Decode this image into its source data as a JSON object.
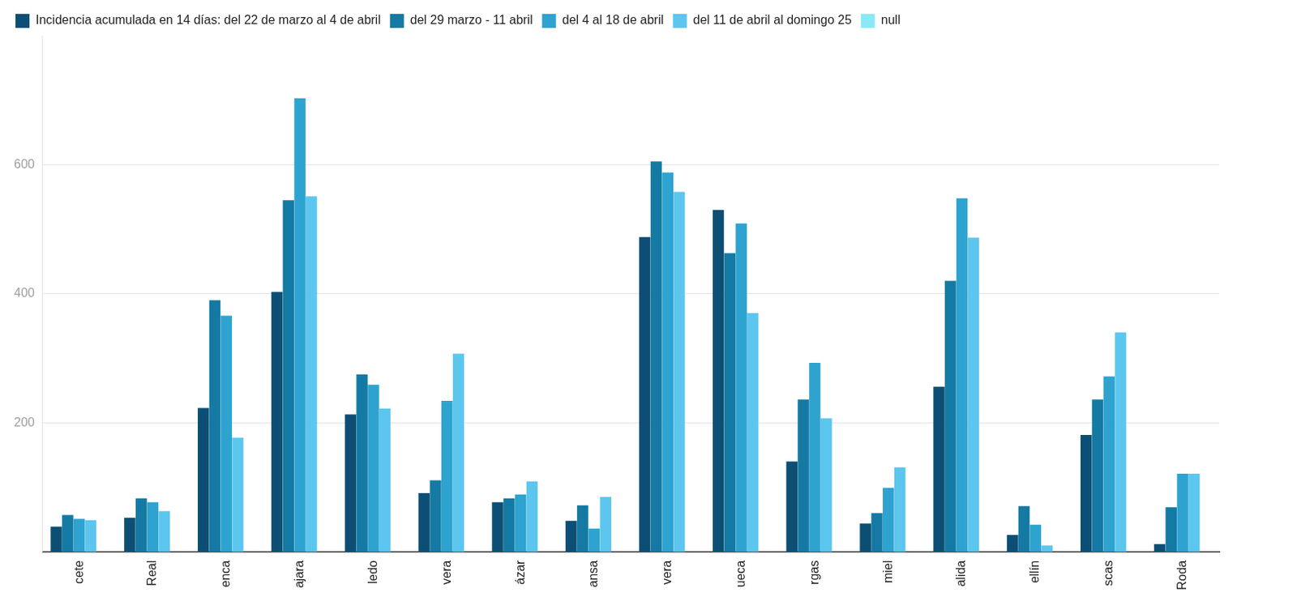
{
  "chart_data": {
    "type": "bar",
    "categories": [
      "cete",
      "Real",
      "enca",
      "ajara",
      "ledo",
      "vera",
      "ázar",
      "ansa",
      "vera",
      "ueca",
      "rgas",
      "miel",
      "alida",
      "ellín",
      "scas",
      "Roda"
    ],
    "series": [
      {
        "name": "Incidencia acumulada en 14 días: del 22 de marzo al 4 de abril",
        "color": "#0d4f74",
        "values": [
          39,
          53,
          223,
          403,
          213,
          91,
          77,
          48,
          488,
          530,
          140,
          44,
          256,
          26,
          181,
          12
        ]
      },
      {
        "name": "del 29 marzo - 11 abril",
        "color": "#157aa3",
        "values": [
          57,
          83,
          390,
          545,
          275,
          111,
          83,
          72,
          605,
          463,
          236,
          60,
          420,
          71,
          236,
          69
        ]
      },
      {
        "name": "del 4 al 18 de abril",
        "color": "#2ea3cf",
        "values": [
          51,
          77,
          366,
          703,
          259,
          234,
          89,
          36,
          588,
          509,
          293,
          99,
          548,
          42,
          272,
          121
        ]
      },
      {
        "name": "del 11 de abril al domingo 25",
        "color": "#5cc6ee",
        "values": [
          49,
          63,
          177,
          551,
          222,
          307,
          109,
          85,
          558,
          370,
          207,
          131,
          487,
          10,
          340,
          121
        ]
      },
      {
        "name": "null",
        "color": "#8ae9f7",
        "values": [
          null,
          null,
          null,
          null,
          null,
          null,
          null,
          null,
          null,
          null,
          null,
          null,
          null,
          null,
          null,
          null
        ]
      }
    ],
    "ylim": [
      0,
      800
    ],
    "yticks": [
      200,
      400,
      600
    ],
    "grid": true,
    "legend": "top-left"
  }
}
